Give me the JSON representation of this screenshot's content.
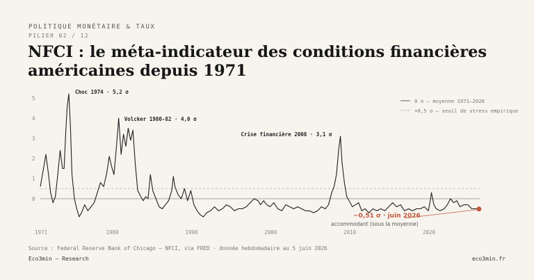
{
  "header": {
    "kicker": "POLITIQUE MONÉTAIRE & TAUX",
    "pillar": "PILIER 02 / 12",
    "title": "NFCI : le méta-indicateur des conditions financières américaines depuis 1971"
  },
  "footer": {
    "source": "Source : Federal Reserve Bank of Chicago — NFCI, via FRED · donnée hebdomadaire au 5 juin 2026",
    "brand": "Eco3min — Research",
    "site": "eco3min.fr"
  },
  "colors": {
    "line": "#1f1f1f",
    "zero_line": "#8a8a8a",
    "threshold_line": "#b5b0a6",
    "highlight": "#c0583e",
    "grid_text": "#8a8a8a"
  },
  "chart_data": {
    "type": "line",
    "xlim": [
      1971,
      2026.5
    ],
    "ylim": [
      -1.2,
      5.5
    ],
    "yticks": [
      "5",
      "4",
      "3",
      "2",
      "1",
      "0"
    ],
    "xticks": [
      "1971",
      "1980",
      "1990",
      "2000",
      "2010",
      "2020"
    ],
    "grid": false,
    "legend_position": "top-right",
    "legend": [
      {
        "label": "0 σ — moyenne 1971–2026",
        "style": "solid"
      },
      {
        "label": "+0,5 σ — seuil de stress empirique",
        "style": "dashed"
      }
    ],
    "reference_lines": [
      {
        "y": 0,
        "style": "solid"
      },
      {
        "y": 0.5,
        "style": "dashed"
      }
    ],
    "annotations": [
      {
        "text": "Choc 1974 · 5,2 σ",
        "x": 1974.6,
        "y": 5.2
      },
      {
        "text": "Volcker 1980-82 · 4,0 σ",
        "x": 1980.9,
        "y": 4.0
      },
      {
        "text": "Crise financière 2008 · 3,1 σ",
        "x": 2008.8,
        "y": 3.1
      }
    ],
    "latest": {
      "label": "−0,51 σ · juin 2026",
      "sublabel": "accommodant (sous la moyenne)",
      "x": 2026.4,
      "y": -0.51
    },
    "series": [
      {
        "x": [
          1971.0,
          1971.4,
          1971.7,
          1972.0,
          1972.3,
          1972.6,
          1972.9,
          1973.2,
          1973.5,
          1973.8,
          1974.0,
          1974.2,
          1974.4,
          1974.6,
          1974.8,
          1975.0,
          1975.3,
          1975.6,
          1975.9,
          1976.2,
          1976.6,
          1977.0,
          1977.4,
          1977.8,
          1978.2,
          1978.6,
          1979.0,
          1979.4,
          1979.7,
          1980.0,
          1980.3,
          1980.6,
          1980.9,
          1981.2,
          1981.5,
          1981.8,
          1982.1,
          1982.4,
          1982.7,
          1983.0,
          1983.3,
          1983.7,
          1984.0,
          1984.3,
          1984.6,
          1984.9,
          1985.2,
          1985.6,
          1986.0,
          1986.4,
          1986.8,
          1987.2,
          1987.6,
          1987.8,
          1988.0,
          1988.4,
          1988.8,
          1989.2,
          1989.6,
          1990.0,
          1990.4,
          1990.8,
          1991.2,
          1991.6,
          1992.0,
          1992.5,
          1993.0,
          1993.5,
          1994.0,
          1994.5,
          1995.0,
          1995.5,
          1996.0,
          1996.5,
          1997.0,
          1997.5,
          1998.0,
          1998.5,
          1998.8,
          1999.2,
          1999.6,
          2000.0,
          2000.5,
          2001.0,
          2001.5,
          2002.0,
          2002.5,
          2003.0,
          2003.5,
          2004.0,
          2004.5,
          2005.0,
          2005.5,
          2006.0,
          2006.5,
          2007.0,
          2007.4,
          2007.8,
          2008.1,
          2008.4,
          2008.7,
          2008.9,
          2009.1,
          2009.4,
          2009.7,
          2010.0,
          2010.4,
          2010.8,
          2011.2,
          2011.6,
          2012.0,
          2012.5,
          2013.0,
          2013.5,
          2014.0,
          2014.5,
          2015.0,
          2015.5,
          2016.0,
          2016.5,
          2017.0,
          2017.5,
          2018.0,
          2018.5,
          2019.0,
          2019.5,
          2020.0,
          2020.2,
          2020.4,
          2020.7,
          2021.0,
          2021.5,
          2022.0,
          2022.4,
          2022.8,
          2023.2,
          2023.6,
          2024.0,
          2024.5,
          2025.0,
          2025.5,
          2026.0,
          2026.4
        ],
        "y": [
          0.6,
          1.5,
          2.2,
          1.3,
          0.3,
          -0.2,
          0.1,
          1.2,
          2.4,
          1.5,
          1.5,
          3.2,
          4.6,
          5.2,
          3.6,
          1.2,
          0.0,
          -0.5,
          -0.9,
          -0.7,
          -0.3,
          -0.6,
          -0.4,
          -0.2,
          0.3,
          0.8,
          0.6,
          1.3,
          2.1,
          1.6,
          1.2,
          2.5,
          4.0,
          2.2,
          3.2,
          2.6,
          3.5,
          2.9,
          3.4,
          1.7,
          0.4,
          0.1,
          -0.1,
          0.1,
          0.0,
          1.2,
          0.4,
          0.0,
          -0.4,
          -0.5,
          -0.3,
          -0.1,
          0.4,
          1.1,
          0.6,
          0.2,
          0.0,
          0.5,
          -0.1,
          0.4,
          -0.3,
          -0.6,
          -0.8,
          -0.9,
          -0.7,
          -0.6,
          -0.4,
          -0.6,
          -0.5,
          -0.3,
          -0.4,
          -0.6,
          -0.5,
          -0.5,
          -0.4,
          -0.2,
          0.0,
          -0.1,
          -0.3,
          -0.1,
          -0.3,
          -0.4,
          -0.2,
          -0.5,
          -0.6,
          -0.3,
          -0.4,
          -0.5,
          -0.4,
          -0.5,
          -0.6,
          -0.6,
          -0.7,
          -0.6,
          -0.4,
          -0.5,
          -0.3,
          0.3,
          0.6,
          1.2,
          2.5,
          3.1,
          1.8,
          0.8,
          0.1,
          -0.1,
          -0.4,
          -0.3,
          -0.2,
          -0.6,
          -0.5,
          -0.7,
          -0.5,
          -0.6,
          -0.5,
          -0.6,
          -0.4,
          -0.2,
          -0.4,
          -0.3,
          -0.6,
          -0.5,
          -0.6,
          -0.5,
          -0.5,
          -0.4,
          -0.6,
          -0.2,
          0.3,
          -0.3,
          -0.5,
          -0.6,
          -0.5,
          -0.3,
          0.0,
          -0.2,
          -0.1,
          -0.4,
          -0.3,
          -0.3,
          -0.5,
          -0.5,
          -0.51
        ]
      }
    ]
  }
}
